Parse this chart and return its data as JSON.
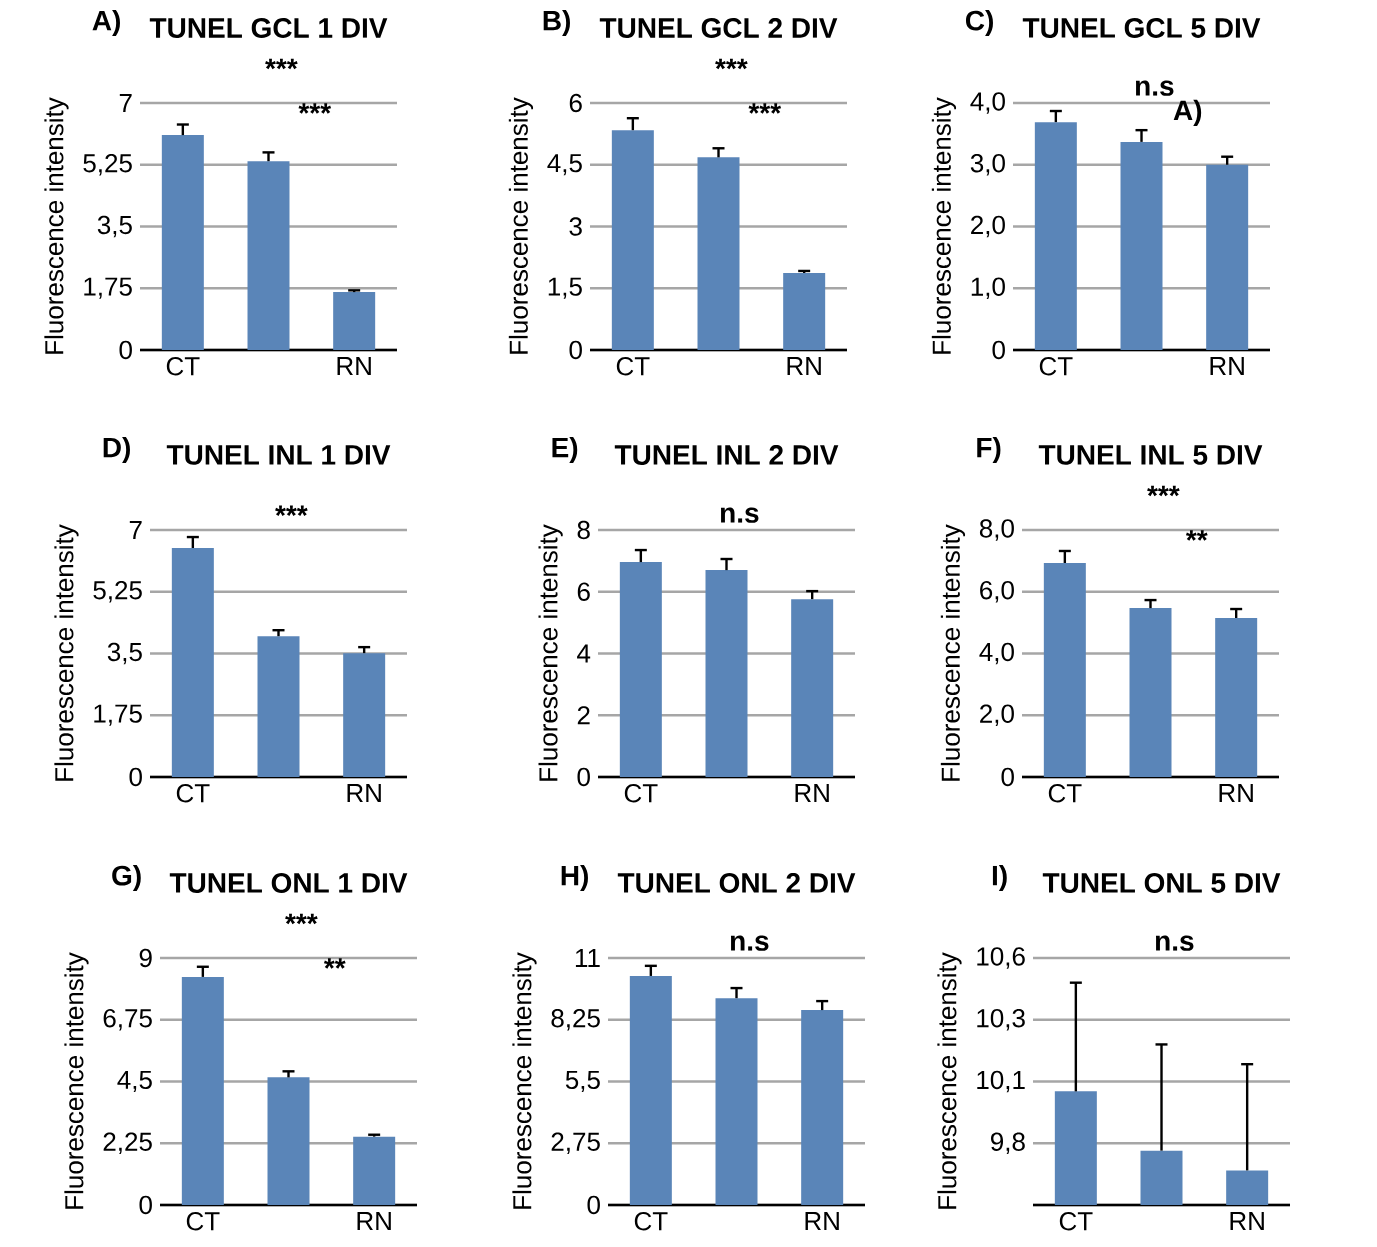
{
  "chart_data": [
    {
      "type": "bar",
      "title": "TUNEL GCL 1 DIV",
      "ylabel": "Fluorescence intensity",
      "categories": [
        "CT",
        null,
        "RN"
      ],
      "values": [
        6.09,
        5.35,
        1.64
      ],
      "errors": [
        0.3,
        0.25,
        0.05
      ],
      "color": "#5a85b8",
      "ylim": [
        0,
        7
      ],
      "yticks": [
        0,
        {
          "value": 1.75,
          "label": "1,75"
        },
        {
          "value": 3.5,
          "label": "3,5"
        },
        {
          "value": 5.25,
          "label": "5,25"
        },
        7
      ],
      "grid": "y",
      "annotations": [
        "A)",
        "***",
        "***"
      ]
    },
    {
      "type": "bar",
      "title": "TUNEL GCL 2 DIV",
      "ylabel": "Fluorescence intensity",
      "categories": [
        "CT",
        null,
        "RN"
      ],
      "values": [
        5.34,
        4.68,
        1.87
      ],
      "errors": [
        0.29,
        0.22,
        0.05
      ],
      "color": "#5a85b8",
      "ylim": [
        0,
        6
      ],
      "yticks": [
        0,
        {
          "value": 1.5,
          "label": "1,5"
        },
        3,
        {
          "value": 4.5,
          "label": "4,5"
        },
        6
      ],
      "grid": "y",
      "annotations": [
        "B)",
        "***",
        "***"
      ]
    },
    {
      "type": "bar",
      "title": "TUNEL GCL 5 DIV",
      "ylabel": "Fluorescence intensity",
      "categories": [
        "CT",
        null,
        "RN"
      ],
      "values": [
        3.69,
        3.37,
        3.0
      ],
      "errors": [
        0.18,
        0.19,
        0.13
      ],
      "color": "#5a85b8",
      "ylim": [
        0,
        4
      ],
      "yticks": [
        0,
        {
          "value": 1,
          "label": "1,0"
        },
        {
          "value": 2,
          "label": "2,0"
        },
        {
          "value": 3,
          "label": "3,0"
        },
        {
          "value": 4,
          "label": "4,0"
        }
      ],
      "grid": "y",
      "annotations": [
        "C)",
        "n.s",
        "A)"
      ]
    },
    {
      "type": "bar",
      "title": "TUNEL INL 1 DIV",
      "ylabel": "Fluorescence intensity",
      "categories": [
        "CT",
        null,
        "RN"
      ],
      "values": [
        6.49,
        3.99,
        3.51
      ],
      "errors": [
        0.31,
        0.17,
        0.17
      ],
      "color": "#5a85b8",
      "ylim": [
        0,
        7
      ],
      "yticks": [
        0,
        {
          "value": 1.75,
          "label": "1,75"
        },
        {
          "value": 3.5,
          "label": "3,5"
        },
        {
          "value": 5.25,
          "label": "5,25"
        },
        7
      ],
      "grid": "y",
      "annotations": [
        "D)",
        "***"
      ]
    },
    {
      "type": "bar",
      "title": "TUNEL INL 2 DIV",
      "ylabel": "Fluorescence intensity",
      "categories": [
        "CT",
        null,
        "RN"
      ],
      "values": [
        6.96,
        6.7,
        5.76
      ],
      "errors": [
        0.39,
        0.36,
        0.26
      ],
      "color": "#5a85b8",
      "ylim": [
        0,
        8
      ],
      "yticks": [
        0,
        2,
        4,
        6,
        8
      ],
      "grid": "y",
      "annotations": [
        "E)",
        "n.s"
      ]
    },
    {
      "type": "bar",
      "title": "TUNEL INL 5 DIV",
      "ylabel": "Fluorescence intensity",
      "categories": [
        "CT",
        null,
        "RN"
      ],
      "values": [
        6.93,
        5.47,
        5.15
      ],
      "errors": [
        0.39,
        0.26,
        0.29
      ],
      "color": "#5a85b8",
      "ylim": [
        0,
        8
      ],
      "yticks": [
        0,
        {
          "value": 2,
          "label": "2,0"
        },
        {
          "value": 4,
          "label": "4,0"
        },
        {
          "value": 6,
          "label": "6,0"
        },
        {
          "value": 8,
          "label": "8,0"
        }
      ],
      "grid": "y",
      "annotations": [
        "F)",
        "***",
        "**"
      ]
    },
    {
      "type": "bar",
      "title": "TUNEL ONL 1 DIV",
      "ylabel": "Fluorescence intensity",
      "categories": [
        "CT",
        null,
        "RN"
      ],
      "values": [
        8.31,
        4.65,
        2.49
      ],
      "errors": [
        0.37,
        0.22,
        0.07
      ],
      "color": "#5a85b8",
      "ylim": [
        0,
        9
      ],
      "yticks": [
        0,
        {
          "value": 2.25,
          "label": "2,25"
        },
        {
          "value": 4.5,
          "label": "4,5"
        },
        {
          "value": 6.75,
          "label": "6,75"
        },
        9
      ],
      "grid": "y",
      "annotations": [
        "G)",
        "***",
        "**"
      ]
    },
    {
      "type": "bar",
      "title": "TUNEL ONL 2 DIV",
      "ylabel": "Fluorescence intensity",
      "categories": [
        "CT",
        null,
        "RN"
      ],
      "values": [
        10.2,
        9.21,
        8.68
      ],
      "errors": [
        0.45,
        0.45,
        0.4
      ],
      "color": "#5a85b8",
      "ylim": [
        0,
        11
      ],
      "yticks": [
        0,
        {
          "value": 2.75,
          "label": "2,75"
        },
        {
          "value": 5.5,
          "label": "5,5"
        },
        {
          "value": 8.25,
          "label": "8,25"
        },
        11
      ],
      "grid": "y",
      "annotations": [
        "H)",
        "n.s"
      ]
    },
    {
      "type": "bar",
      "title": "TUNEL ONL 5 DIV",
      "ylabel": "Fluorescence intensity",
      "categories": [
        "CT",
        null,
        "RN"
      ],
      "values": [
        10.01,
        9.77,
        9.69
      ],
      "errors": [
        0.44,
        0.43,
        0.43
      ],
      "color": "#5a85b8",
      "ylim": [
        9.55,
        10.55
      ],
      "yticks": [
        {
          "value": 9.55,
          "label": null
        },
        {
          "value": 9.8,
          "label": "9,8"
        },
        {
          "value": 10.05,
          "label": "10,1"
        },
        {
          "value": 10.3,
          "label": "10,3"
        },
        {
          "value": 10.55,
          "label": "10,6"
        }
      ],
      "grid": "y",
      "annotations": [
        "I)",
        "n.s"
      ]
    }
  ]
}
